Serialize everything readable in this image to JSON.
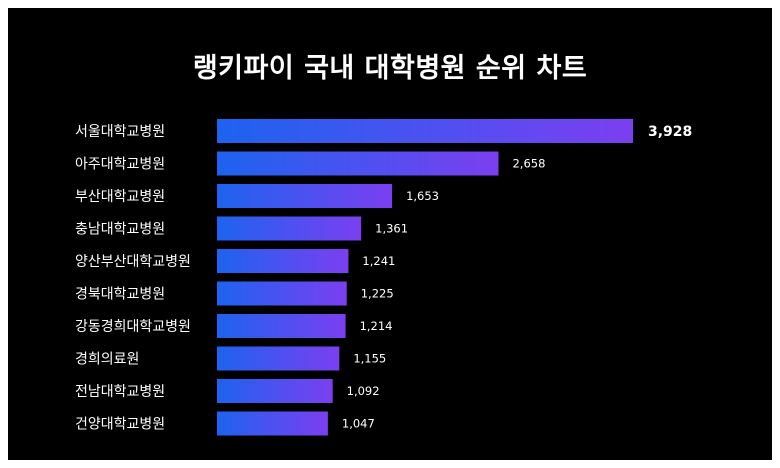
{
  "title": "랭키파이 국내 대학병원 순위 차트",
  "colors": {
    "background": "#000000",
    "bar_start": "#1d63ef",
    "bar_end": "#7b3ff0",
    "text": "#ffffff"
  },
  "chart_data": {
    "type": "bar",
    "orientation": "horizontal",
    "title": "랭키파이 국내 대학병원 순위 차트",
    "categories": [
      "서울대학교병원",
      "아주대학교병원",
      "부산대학교병원",
      "충남대학교병원",
      "양산부산대학교병원",
      "경북대학교병원",
      "강동경희대학교병원",
      "경희의료원",
      "전남대학교병원",
      "건양대학교병원"
    ],
    "values": [
      3928,
      2658,
      1653,
      1361,
      1241,
      1225,
      1214,
      1155,
      1092,
      1047
    ],
    "value_labels": [
      "3,928",
      "2,658",
      "1,653",
      "1,361",
      "1,241",
      "1,225",
      "1,214",
      "1,155",
      "1,092",
      "1,047"
    ],
    "xlim": [
      0,
      3928
    ],
    "grid": false,
    "legend": "none"
  }
}
